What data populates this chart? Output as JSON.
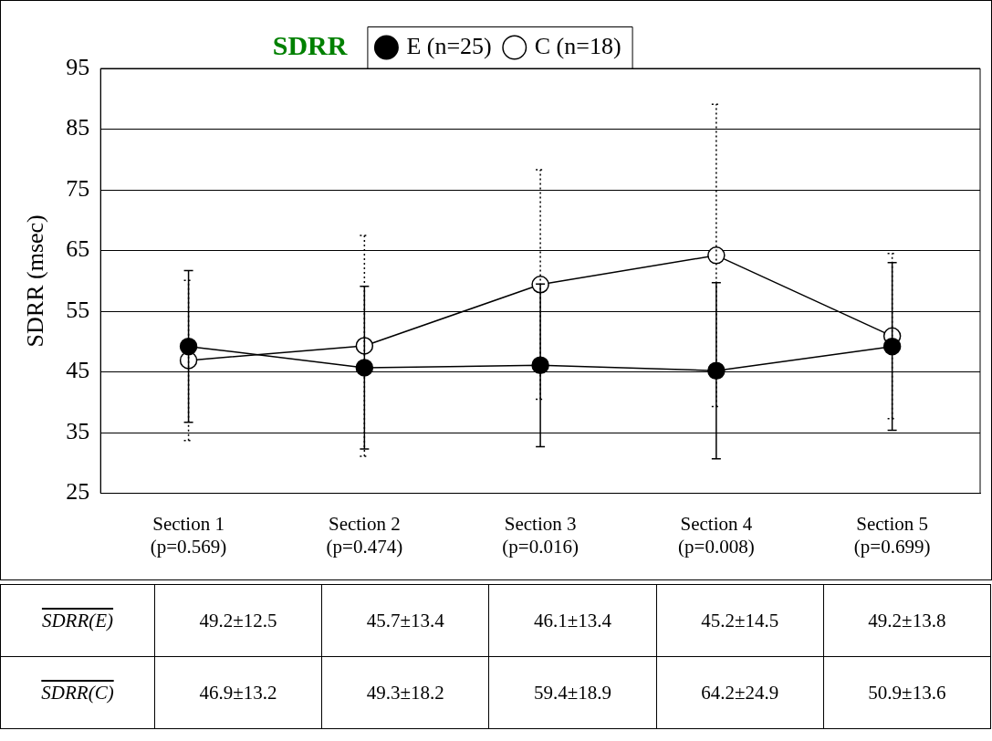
{
  "chart_data": {
    "type": "line",
    "title": "SDRR",
    "ylabel": "SDRR (msec)",
    "categories": [
      "Section 1\n(p=0.569)",
      "Section 2\n(p=0.474)",
      "Section 3\n(p=0.016)",
      "Section 4\n(p=0.008)",
      "Section 5\n(p=0.699)"
    ],
    "series": [
      {
        "name": "E (n=25)",
        "color": "#000000",
        "values": [
          49.2,
          45.7,
          46.1,
          45.2,
          49.2
        ],
        "errors": [
          12.5,
          13.4,
          13.4,
          14.5,
          13.8
        ],
        "value_labels": [
          "49.2±12.5",
          "45.7±13.4",
          "46.1±13.4",
          "45.2±14.5",
          "49.2±13.8"
        ]
      },
      {
        "name": "C (n=18)",
        "color": "#000000",
        "values": [
          46.9,
          49.3,
          59.4,
          64.2,
          50.9
        ],
        "errors": [
          13.2,
          18.2,
          18.9,
          24.9,
          13.6
        ],
        "value_labels": [
          "46.9±13.2",
          "49.3±18.2",
          "59.4±18.9",
          "64.2±24.9",
          "50.9±13.6"
        ]
      }
    ],
    "annotations": [
      "SDRR(E)",
      "SDRR(C)"
    ],
    "ylim": [
      25,
      95
    ],
    "yticks": [
      25,
      35,
      45,
      55,
      65,
      75,
      85,
      95
    ],
    "grid": "y",
    "legend": "top",
    "marker": "circle",
    "line_style": "solid"
  }
}
